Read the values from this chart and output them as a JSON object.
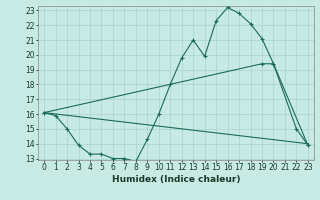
{
  "xlabel": "Humidex (Indice chaleur)",
  "background_color": "#c8eae4",
  "grid_color": "#a8d4cc",
  "line_color": "#1a6b5a",
  "x_data": [
    0,
    1,
    2,
    3,
    4,
    5,
    6,
    7,
    8,
    9,
    10,
    11,
    12,
    13,
    14,
    15,
    16,
    17,
    18,
    19,
    20,
    21,
    22,
    23
  ],
  "line1_x": [
    0,
    1,
    2,
    3,
    4,
    5,
    6,
    7,
    8,
    9,
    10,
    11,
    12,
    13,
    14,
    15,
    16,
    17,
    18,
    19,
    20,
    22,
    23
  ],
  "line1_y": [
    16.1,
    15.9,
    15.0,
    13.9,
    13.3,
    13.3,
    13.0,
    13.0,
    12.8,
    14.3,
    16.0,
    18.0,
    19.8,
    21.0,
    19.9,
    22.3,
    23.2,
    22.8,
    22.1,
    21.1,
    19.4,
    15.0,
    13.9
  ],
  "line2_x": [
    0,
    19,
    20,
    23
  ],
  "line2_y": [
    16.1,
    19.4,
    19.4,
    13.9
  ],
  "line3_x": [
    0,
    23
  ],
  "line3_y": [
    16.1,
    14.0
  ],
  "ylim_min": 13,
  "ylim_max": 23,
  "xlim_min": -0.5,
  "xlim_max": 23.5,
  "yticks": [
    13,
    14,
    15,
    16,
    17,
    18,
    19,
    20,
    21,
    22,
    23
  ],
  "xticks": [
    0,
    1,
    2,
    3,
    4,
    5,
    6,
    7,
    8,
    9,
    10,
    11,
    12,
    13,
    14,
    15,
    16,
    17,
    18,
    19,
    20,
    21,
    22,
    23
  ],
  "tick_fontsize": 5.5,
  "xlabel_fontsize": 6.5
}
